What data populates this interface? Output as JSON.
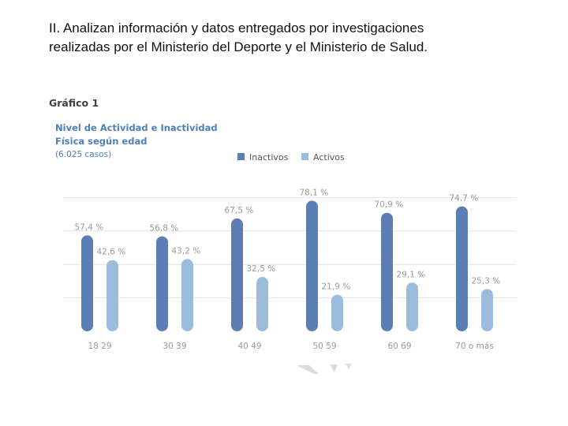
{
  "heading": {
    "line1": "II. Analizan información y datos entregados por investigaciones",
    "line2": "realizadas por el Ministerio del Deporte y el Ministerio de Salud."
  },
  "chart_data": {
    "type": "bar",
    "graphic_label": "Gráfico 1",
    "title_lines": [
      "Nivel de Actividad e Inactividad",
      "Física según edad"
    ],
    "subtitle": "(6.025 casos)",
    "categories": [
      "18 29",
      "30 39",
      "40 49",
      "50 59",
      "60 69",
      "70 o más"
    ],
    "series": [
      {
        "name": "Inactivos",
        "color": "#5b7fb4",
        "values": [
          57.4,
          56.8,
          67.5,
          78.1,
          70.9,
          74.7
        ],
        "labels": [
          "57,4 %",
          "56,8 %",
          "67,5 %",
          "78,1 %",
          "70,9 %",
          "74,7 %"
        ]
      },
      {
        "name": "Activos",
        "color": "#9bbcdd",
        "values": [
          42.6,
          43.2,
          32.5,
          21.9,
          29.1,
          25.3
        ],
        "labels": [
          "42,6 %",
          "43,2 %",
          "32,5 %",
          "21,9 %",
          "29,1 %",
          "25,3 %"
        ]
      }
    ],
    "ylim": [
      0,
      100
    ],
    "grid": true,
    "legend": "top"
  }
}
